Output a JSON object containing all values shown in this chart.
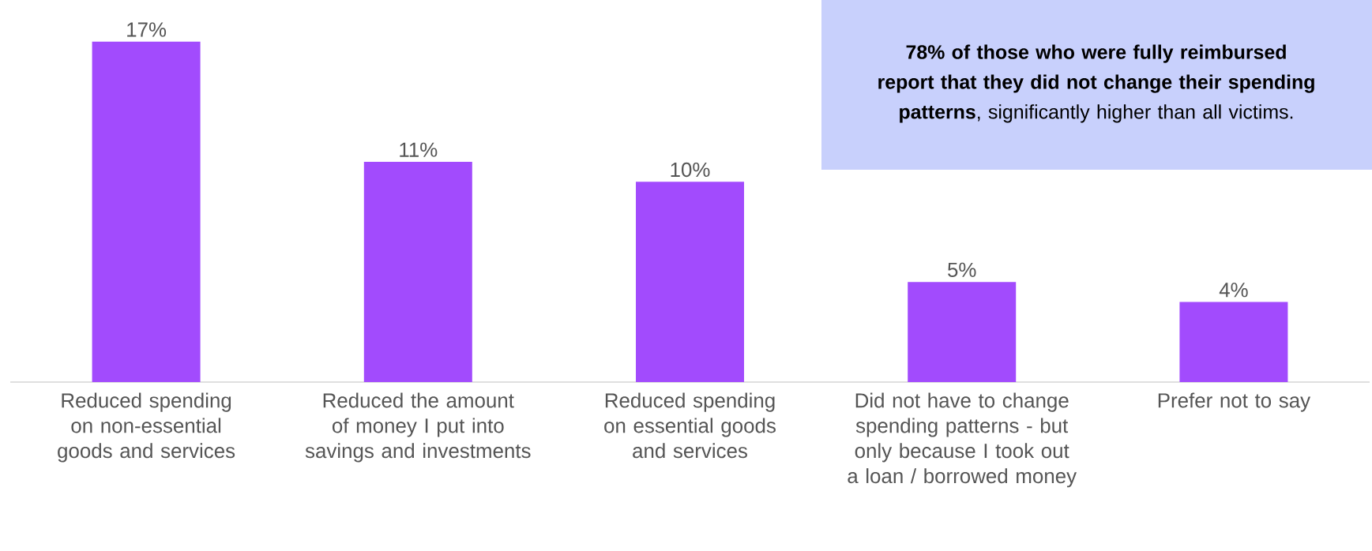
{
  "chart_data": {
    "type": "bar",
    "categories": [
      "Reduced spending on non-essential goods and services",
      "Reduced the amount of money I put into savings and investments",
      "Reduced spending on essential goods and services",
      "Did not have to change spending patterns - but only because I took out a loan / borrowed money",
      "Prefer not to say"
    ],
    "values": [
      17,
      11,
      10,
      5,
      4
    ],
    "value_labels": [
      "17%",
      "11%",
      "10%",
      "5%",
      "4%"
    ],
    "color": "#a24bfd",
    "annotations": [
      "**78% of those who were fully reimbursed report that they did not change their spending patterns**, significantly higher than all victims."
    ]
  }
}
